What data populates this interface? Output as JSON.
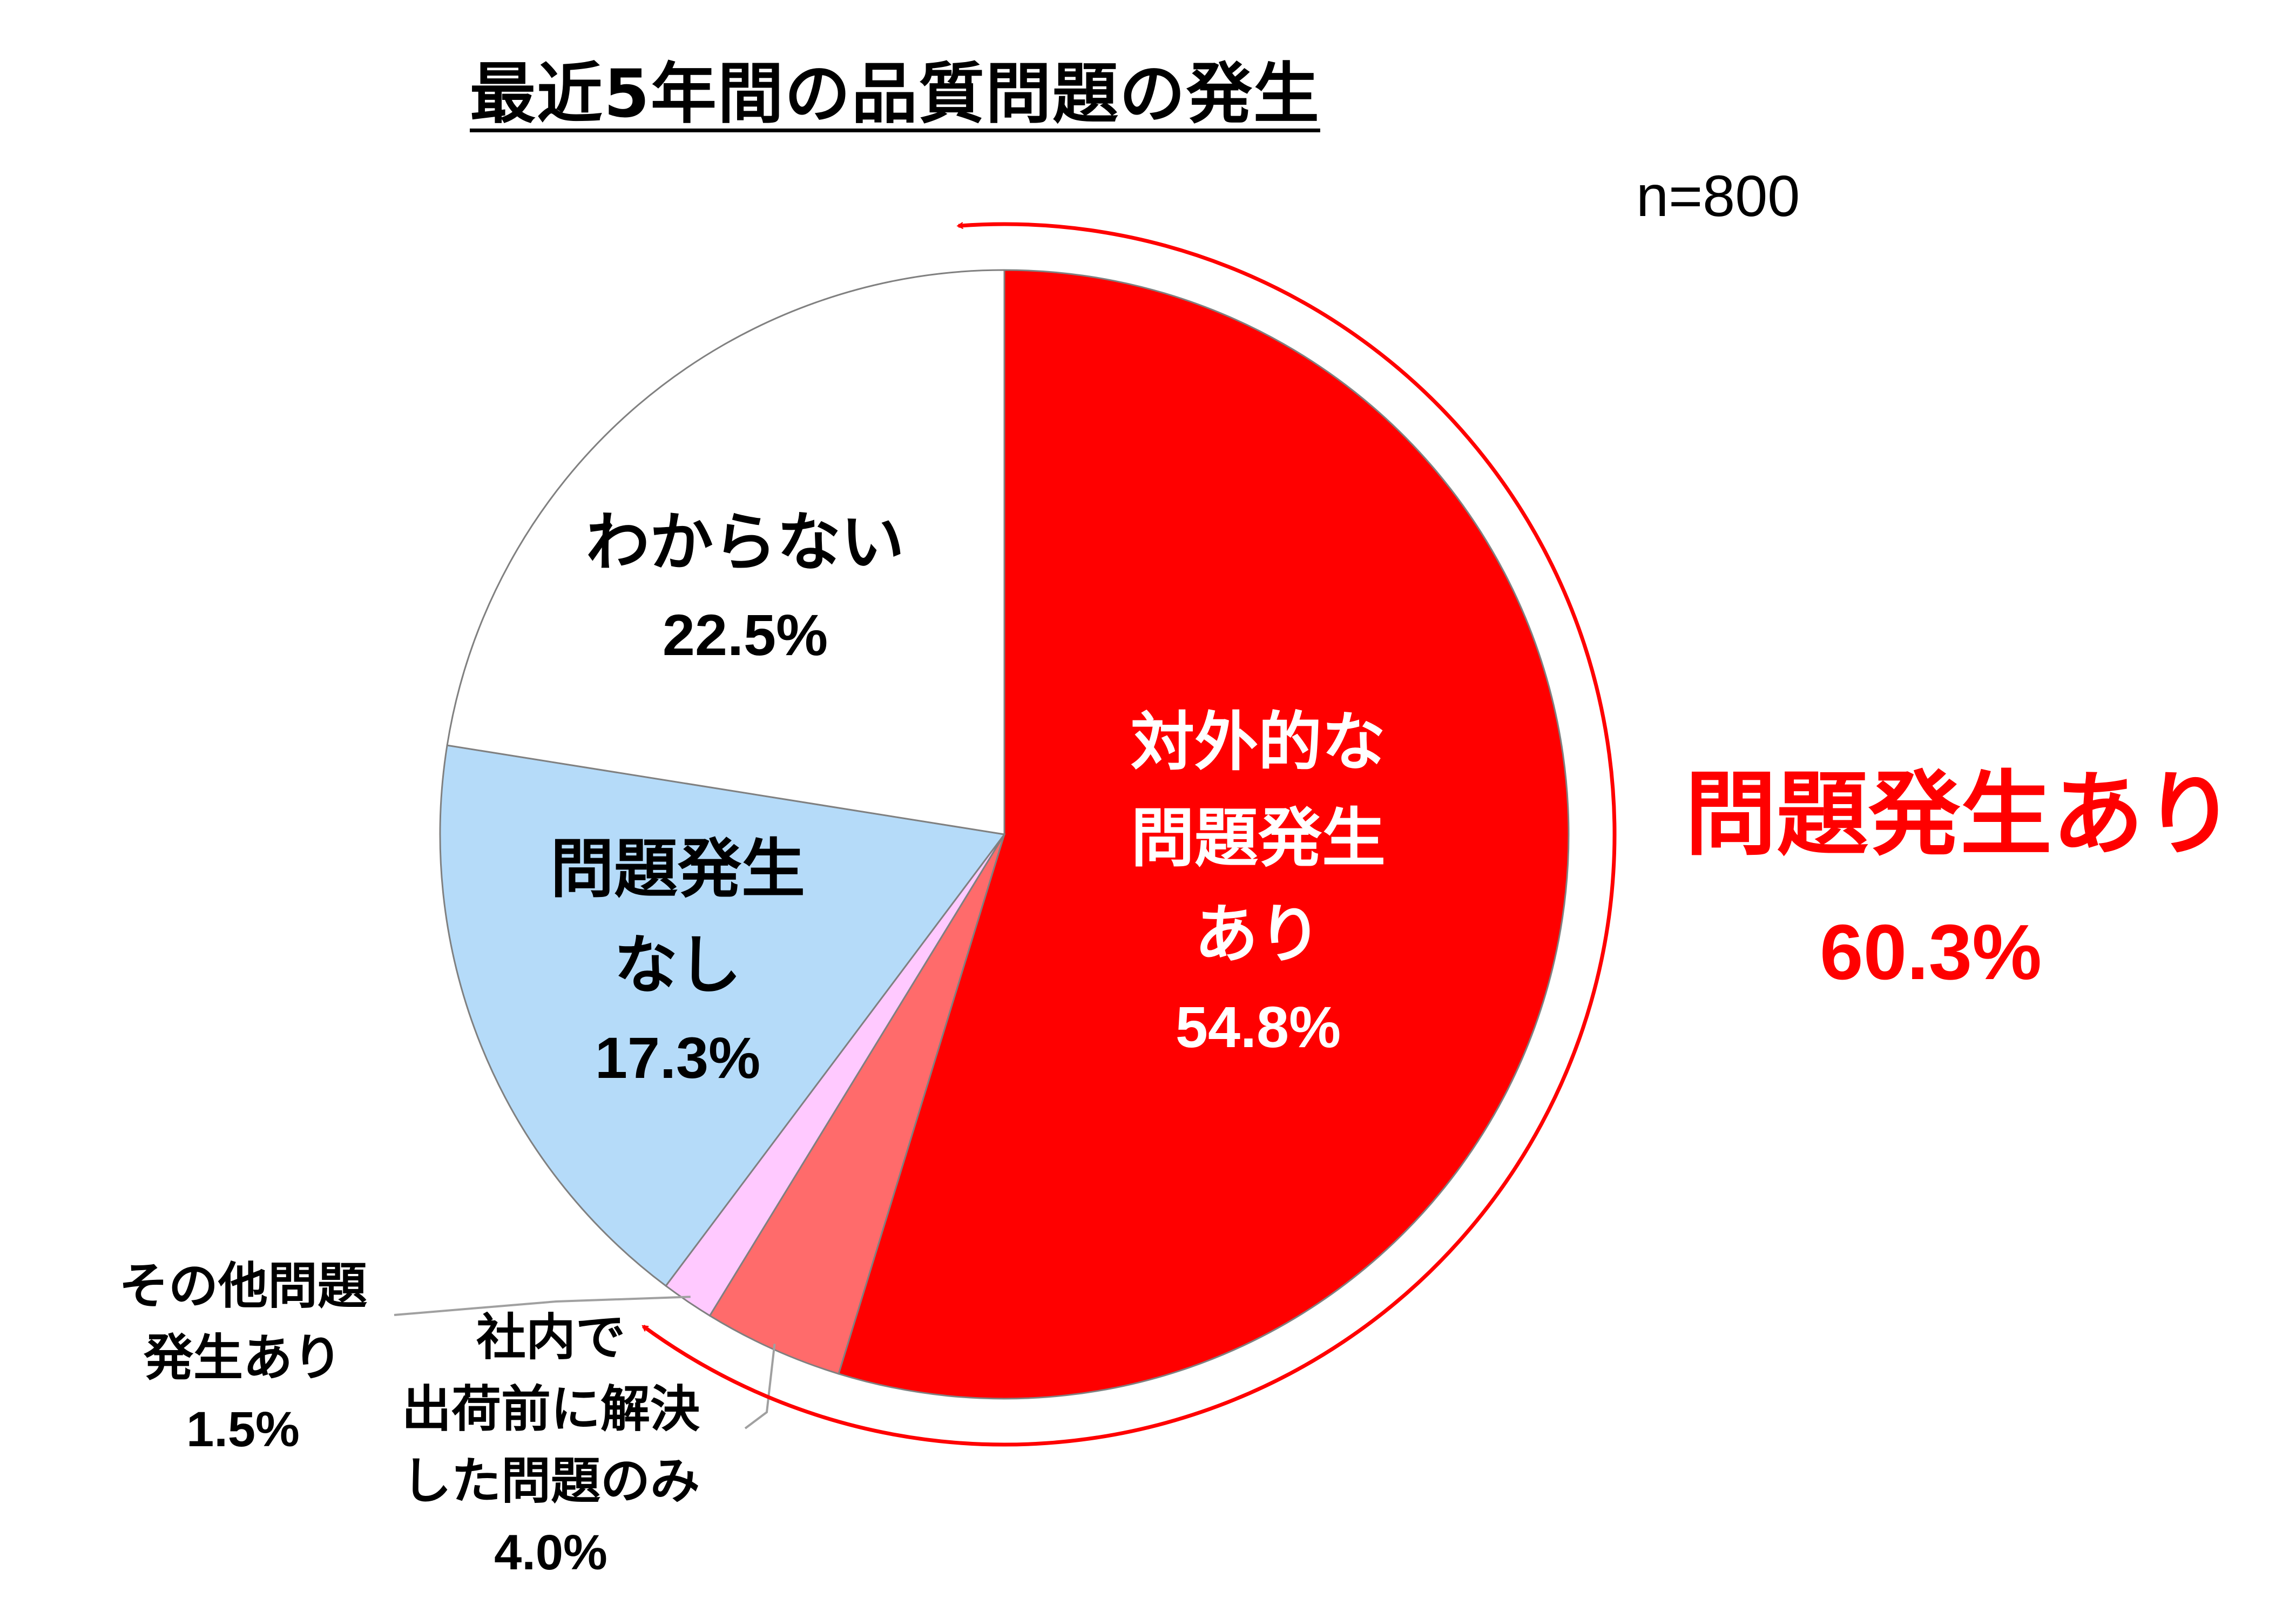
{
  "title": "最近5年間の品質問題の発生",
  "note": "n=800",
  "total": {
    "label": "問題発生あり",
    "value": "60.3%"
  },
  "chart_data": {
    "type": "pie",
    "start_angle": "12 o'clock",
    "direction": "clockwise",
    "slices": [
      {
        "name": "対外的な問題発生あり",
        "value": 54.8,
        "label_lines": [
          "対外的な",
          "問題発生",
          "あり"
        ],
        "pct_text": "54.8%",
        "color": "#ff0000"
      },
      {
        "name": "社内で出荷前に解決した問題のみ",
        "value": 4.0,
        "label_lines": [
          "社内で",
          "出荷前に解決",
          "した問題のみ"
        ],
        "pct_text": "4.0%",
        "color": "#ff6b6b"
      },
      {
        "name": "その他問題発生あり",
        "value": 1.5,
        "label_lines": [
          "その他問題",
          "発生あり"
        ],
        "pct_text": "1.5%",
        "color": "#ffc9ff"
      },
      {
        "name": "問題発生なし",
        "value": 17.3,
        "label_lines": [
          "問題発生",
          "なし"
        ],
        "pct_text": "17.3%",
        "color": "#b5dbf9"
      },
      {
        "name": "わからない",
        "value": 22.5,
        "label_lines": [
          "わからない"
        ],
        "pct_text": "22.5%",
        "color": "#ffffff"
      }
    ],
    "bracket": {
      "label": "問題発生あり",
      "value": 60.3,
      "color": "#ff0000"
    }
  }
}
